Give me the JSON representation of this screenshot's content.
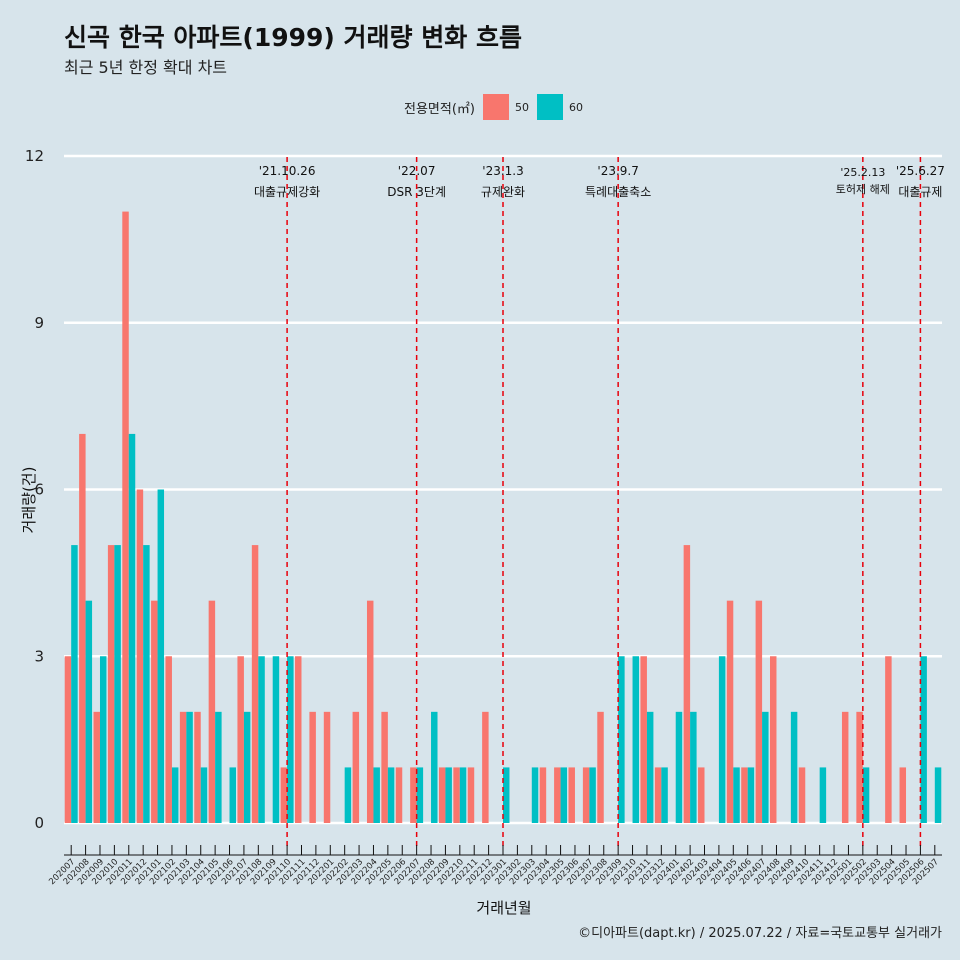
{
  "title": "신곡 한국 아파트(1999) 거래량 변화 흐름",
  "subtitle": "최근 5년 한정 확대 차트",
  "caption": "©디아파트(dapt.kr) / 2025.07.22 / 자료=국토교통부 실거래가",
  "colors": {
    "s50": "#f8766d",
    "s60": "#00bfc4",
    "background": "#d7e4eb",
    "grid": "#ffffff",
    "event_line": "#e8000b"
  },
  "chart_data": {
    "type": "bar",
    "title": "신곡 한국 아파트(1999) 거래량 변화 흐름",
    "subtitle": "최근 5년 한정 확대 차트",
    "xlabel": "거래년월",
    "ylabel": "거래량(건)",
    "ylim": [
      0,
      12
    ],
    "yticks": [
      0,
      3,
      6,
      9,
      12
    ],
    "legend": {
      "title": "전용면적(㎡)",
      "position": "top",
      "entries": [
        "50",
        "60"
      ]
    },
    "categories": [
      "202007",
      "202008",
      "202009",
      "202010",
      "202011",
      "202012",
      "202101",
      "202102",
      "202103",
      "202104",
      "202105",
      "202106",
      "202107",
      "202108",
      "202109",
      "202110",
      "202111",
      "202112",
      "202201",
      "202202",
      "202203",
      "202204",
      "202205",
      "202206",
      "202207",
      "202208",
      "202209",
      "202210",
      "202211",
      "202212",
      "202301",
      "202302",
      "202303",
      "202304",
      "202305",
      "202306",
      "202307",
      "202308",
      "202309",
      "202310",
      "202311",
      "202312",
      "202401",
      "202402",
      "202403",
      "202404",
      "202405",
      "202406",
      "202407",
      "202408",
      "202409",
      "202410",
      "202411",
      "202412",
      "202501",
      "202502",
      "202503",
      "202504",
      "202505",
      "202506",
      "202507"
    ],
    "series": [
      {
        "name": "50",
        "values": [
          3,
          7,
          2,
          5,
          11,
          6,
          4,
          3,
          2,
          2,
          4,
          0,
          3,
          5,
          0,
          1,
          3,
          2,
          2,
          0,
          2,
          4,
          2,
          1,
          1,
          0,
          1,
          1,
          1,
          2,
          0,
          0,
          0,
          1,
          1,
          1,
          1,
          2,
          0,
          0,
          3,
          1,
          0,
          5,
          1,
          0,
          4,
          1,
          4,
          3,
          0,
          1,
          0,
          0,
          2,
          2,
          0,
          3,
          1,
          0,
          0
        ]
      },
      {
        "name": "60",
        "values": [
          5,
          4,
          3,
          5,
          7,
          5,
          6,
          1,
          2,
          1,
          2,
          1,
          2,
          3,
          3,
          3,
          0,
          0,
          0,
          1,
          0,
          1,
          1,
          0,
          1,
          2,
          1,
          1,
          0,
          0,
          1,
          0,
          1,
          0,
          1,
          0,
          1,
          0,
          3,
          3,
          2,
          1,
          2,
          2,
          0,
          3,
          1,
          1,
          2,
          0,
          2,
          0,
          1,
          0,
          0,
          1,
          0,
          0,
          0,
          3,
          1
        ]
      }
    ],
    "events": [
      {
        "date": "'21.10.26",
        "label": "대출규제강화",
        "month": "202110"
      },
      {
        "date": "'22.07",
        "label": "DSR 3단계",
        "month": "202207"
      },
      {
        "date": "'23.1.3",
        "label": "규제완화",
        "month": "202301"
      },
      {
        "date": "'23.9.7",
        "label": "특례대출축소",
        "month": "202309"
      },
      {
        "date": "'25.2.13",
        "label": "토허제 해제",
        "month": "202502"
      },
      {
        "date": "'25.6.27",
        "label": "대출규제",
        "month": "202506"
      }
    ]
  }
}
